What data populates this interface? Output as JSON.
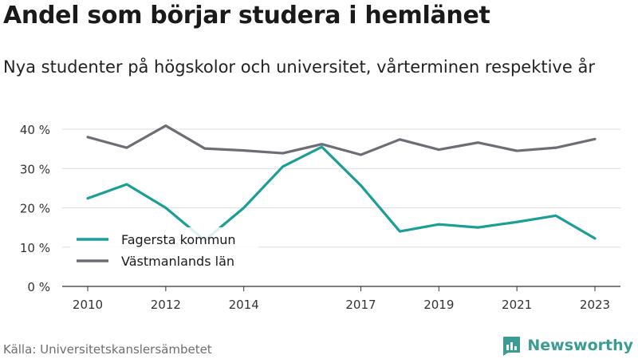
{
  "title": "Andel som börjar studera i hemlänet",
  "subtitle": "Nya studenter på högskolor och universitet, vårterminen respektive år",
  "source": "Källa: Universitetskanslersämbetet",
  "brand": "Newsworthy",
  "colors": {
    "fagersta": "#1a9e96",
    "vastmanland": "#6e6d75",
    "grid": "#dddddd",
    "brand": "#3a9c92"
  },
  "chart_data": {
    "type": "line",
    "x": [
      2010,
      2011,
      2012,
      2013,
      2014,
      2015,
      2016,
      2017,
      2018,
      2019,
      2020,
      2021,
      2022,
      2023
    ],
    "xticks": [
      2010,
      2012,
      2014,
      2017,
      2019,
      2021,
      2023
    ],
    "yticks": [
      0,
      10,
      20,
      30,
      40
    ],
    "yticklabels": [
      "0 %",
      "10 %",
      "20 %",
      "30 %",
      "40 %"
    ],
    "ylim": [
      0,
      41
    ],
    "series": [
      {
        "name": "Fagersta kommun",
        "color": "#1a9e96",
        "values": [
          22.4,
          26.0,
          20.0,
          11.7,
          20.0,
          30.5,
          35.5,
          25.7,
          14.0,
          15.8,
          15.0,
          16.4,
          18.0,
          12.2
        ]
      },
      {
        "name": "Västmanlands län",
        "color": "#6e6d75",
        "values": [
          38.0,
          35.3,
          40.9,
          35.1,
          34.6,
          33.9,
          36.2,
          33.5,
          37.4,
          34.8,
          36.6,
          34.5,
          35.3,
          37.5
        ]
      }
    ],
    "legend_position": "bottom-left",
    "grid": true
  }
}
